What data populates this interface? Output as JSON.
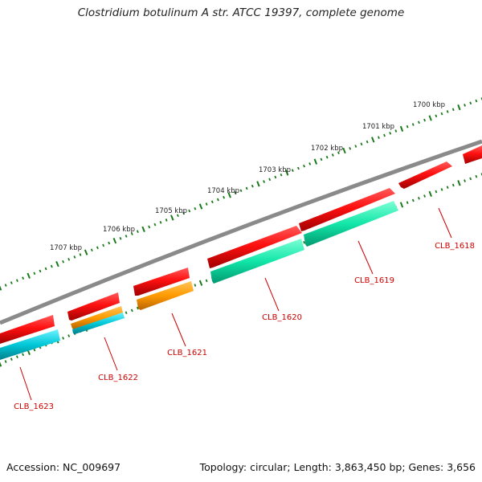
{
  "title": "Clostridium botulinum A str. ATCC 19397, complete genome",
  "footer": {
    "accession": "Accession: NC_009697",
    "summary": "Topology: circular; Length: 3,863,450 bp; Genes: 3,656"
  },
  "colors": {
    "backbone": "#8a8a8a",
    "tick": "#1a7a1a",
    "cds_red": "#e60000",
    "gene_green": "#00e0a0",
    "gene_orange": "#ff9900",
    "gene_cyan": "#00c0d0",
    "label": "#cc0000",
    "scale_label": "#222222"
  },
  "scale_labels": [
    "1700 kbp",
    "1701 kbp",
    "1702 kbp",
    "1703 kbp",
    "1704 kbp",
    "1705 kbp",
    "1706 kbp",
    "1707 kbp"
  ],
  "gene_labels": [
    "CLB_1618",
    "CLB_1619",
    "CLB_1620",
    "CLB_1621",
    "CLB_1622",
    "CLB_1623"
  ]
}
